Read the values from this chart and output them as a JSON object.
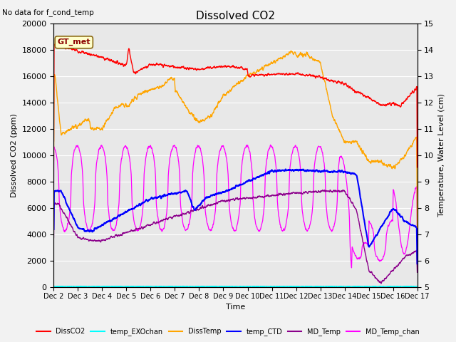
{
  "title": "Dissolved CO2",
  "subtitle": "No data for f_cond_temp",
  "xlabel": "Time",
  "ylabel_left": "Dissolved CO2 (ppm)",
  "ylabel_right": "Temperature, Water Level (cm)",
  "ylim_left": [
    0,
    20000
  ],
  "ylim_right": [
    5.0,
    15.0
  ],
  "yticks_left": [
    0,
    2000,
    4000,
    6000,
    8000,
    10000,
    12000,
    14000,
    16000,
    18000,
    20000
  ],
  "yticks_right": [
    5.0,
    6.0,
    7.0,
    8.0,
    9.0,
    10.0,
    11.0,
    12.0,
    13.0,
    14.0,
    15.0
  ],
  "xtick_labels": [
    "Dec 2",
    "Dec 3",
    "Dec 4",
    "Dec 5",
    "Dec 6",
    "Dec 7",
    "Dec 8",
    "Dec 9",
    "Dec 10",
    "Dec 11",
    "Dec 12",
    "Dec 13",
    "Dec 14",
    "Dec 15",
    "Dec 16",
    "Dec 17"
  ],
  "legend_labels": [
    "DissCO2",
    "temp_EXOchan",
    "DissTemp",
    "temp_CTD",
    "MD_Temp",
    "MD_Temp_chan"
  ],
  "legend_colors": [
    "#ff0000",
    "#00ffff",
    "#ffa500",
    "#0000ff",
    "#8b008b",
    "#ff00ff"
  ],
  "annotation_text": "GT_met",
  "background_color": "#e8e8e8",
  "grid_color": "#ffffff",
  "title_fontsize": 11,
  "label_fontsize": 8,
  "tick_fontsize": 8
}
